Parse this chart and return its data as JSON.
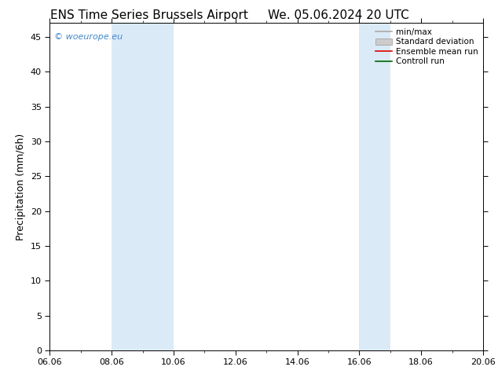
{
  "title_left": "ENS Time Series Brussels Airport",
  "title_right": "We. 05.06.2024 20 UTC",
  "ylabel": "Precipitation (mm/6h)",
  "ylim": [
    0,
    47
  ],
  "yticks": [
    0,
    5,
    10,
    15,
    20,
    25,
    30,
    35,
    40,
    45
  ],
  "xlim_start": 0,
  "xlim_end": 14,
  "xtick_labels": [
    "06.06",
    "08.06",
    "10.06",
    "12.06",
    "14.06",
    "16.06",
    "18.06",
    "20.06"
  ],
  "xtick_positions": [
    0,
    2,
    4,
    6,
    8,
    10,
    12,
    14
  ],
  "shaded_bands": [
    {
      "x_start": 2,
      "x_end": 4,
      "color": "#daeaf7"
    },
    {
      "x_start": 10,
      "x_end": 11,
      "color": "#daeaf7"
    }
  ],
  "watermark": "© woeurope.eu",
  "watermark_color": "#4488cc",
  "legend_entries": [
    {
      "label": "min/max",
      "color": "#aaaaaa",
      "type": "line"
    },
    {
      "label": "Standard deviation",
      "color": "#cccccc",
      "type": "box"
    },
    {
      "label": "Ensemble mean run",
      "color": "#dd0000",
      "type": "line"
    },
    {
      "label": "Controll run",
      "color": "#006600",
      "type": "line"
    }
  ],
  "bg_color": "#ffffff",
  "plot_bg_color": "#ffffff",
  "title_fontsize": 11,
  "axis_label_fontsize": 9,
  "tick_fontsize": 8,
  "legend_fontsize": 7.5
}
